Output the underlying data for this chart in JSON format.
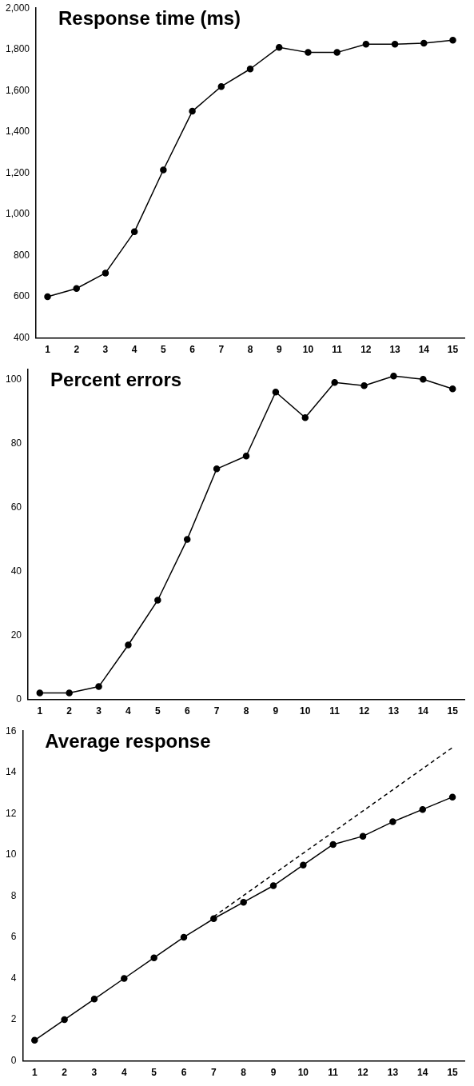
{
  "chart_data": [
    {
      "type": "line",
      "title": "Response time (ms)",
      "x": [
        1,
        2,
        3,
        4,
        5,
        6,
        7,
        8,
        9,
        10,
        11,
        12,
        13,
        14,
        15
      ],
      "xlim": [
        0.6,
        15.4
      ],
      "xticks": [
        1,
        2,
        3,
        4,
        5,
        6,
        7,
        8,
        9,
        10,
        11,
        12,
        13,
        14,
        15
      ],
      "ylim": [
        400,
        2000
      ],
      "yticks": [
        400,
        600,
        800,
        {
          "value": 1000,
          "label": "1,000"
        },
        {
          "value": 1200,
          "label": "1,200"
        },
        {
          "value": 1400,
          "label": "1,400"
        },
        {
          "value": 1600,
          "label": "1,600"
        },
        {
          "value": 1800,
          "label": "1,800"
        },
        {
          "value": 2000,
          "label": "2,000"
        }
      ],
      "grid": false,
      "legend": false,
      "marker": "circle",
      "line_style": "solid",
      "series": [
        {
          "color": "#000000",
          "values": [
            600,
            640,
            715,
            915,
            1215,
            1500,
            1620,
            1705,
            1810,
            1785,
            1785,
            1825,
            1825,
            1830,
            1845
          ]
        }
      ]
    },
    {
      "type": "line",
      "title": "Percent errors",
      "x": [
        1,
        2,
        3,
        4,
        5,
        6,
        7,
        8,
        9,
        10,
        11,
        12,
        13,
        14,
        15
      ],
      "xlim": [
        0.6,
        15.4
      ],
      "xticks": [
        1,
        2,
        3,
        4,
        5,
        6,
        7,
        8,
        9,
        10,
        11,
        12,
        13,
        14,
        15
      ],
      "ylim": [
        0,
        103
      ],
      "yticks": [
        0,
        20,
        40,
        60,
        80,
        100
      ],
      "grid": false,
      "legend": false,
      "marker": "circle",
      "line_style": "solid",
      "series": [
        {
          "color": "#000000",
          "values": [
            2,
            2,
            4,
            17,
            31,
            50,
            72,
            76,
            96,
            88,
            99,
            98,
            101,
            100,
            97
          ]
        }
      ]
    },
    {
      "type": "line",
      "title": "Average response",
      "x": [
        1,
        2,
        3,
        4,
        5,
        6,
        7,
        8,
        9,
        10,
        11,
        12,
        13,
        14,
        15
      ],
      "xlim": [
        0.6,
        15.4
      ],
      "xticks": [
        1,
        2,
        3,
        4,
        5,
        6,
        7,
        8,
        9,
        10,
        11,
        12,
        13,
        14,
        15
      ],
      "ylim": [
        0,
        16
      ],
      "yticks": [
        0,
        2,
        4,
        6,
        8,
        10,
        12,
        14,
        16
      ],
      "grid": false,
      "legend": false,
      "marker": "circle",
      "line_style": "solid",
      "series": [
        {
          "color": "#000000",
          "values": [
            1,
            2,
            3,
            4,
            5,
            6,
            6.9,
            7.7,
            8.5,
            9.5,
            10.5,
            10.9,
            11.6,
            12.2,
            12.8
          ]
        },
        {
          "type": "line",
          "color": "#000000",
          "x": [
            7,
            15
          ],
          "values": [
            7,
            15.2
          ],
          "marker": "none",
          "line_style": "dashed"
        }
      ]
    }
  ]
}
